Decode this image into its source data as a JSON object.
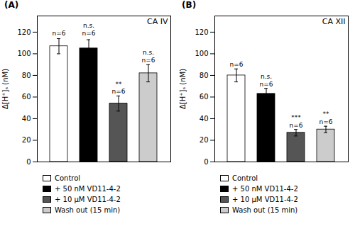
{
  "chart_data": [
    {
      "type": "bar",
      "title": "CA IV",
      "subtitle": "(A)",
      "categories": [
        "Control",
        "+ 50 nM VD11-4-2",
        "+ 10 μM VD11-4-2",
        "Wash out (15 min)"
      ],
      "values": [
        107,
        105,
        54,
        82
      ],
      "errors": [
        7,
        8,
        7,
        8
      ],
      "colors": [
        "#ffffff",
        "#000000",
        "#555555",
        "#cccccc"
      ],
      "ylabel": "Δ[H⁺]ₛ (nM)",
      "ylim": [
        0,
        135
      ],
      "yticks": [
        0,
        20,
        40,
        60,
        80,
        100,
        120
      ],
      "tick_labels": "y",
      "legend": "bottom",
      "annotations": [
        {
          "category": "Control",
          "text": "n=6",
          "y": 117
        },
        {
          "category": "+ 50 nM VD11-4-2",
          "text": "n=6",
          "y": 117
        },
        {
          "category": "+ 50 nM VD11-4-2",
          "text": "n.s.",
          "y": 124
        },
        {
          "category": "+ 10 μM VD11-4-2",
          "text": "n=6",
          "y": 63
        },
        {
          "category": "+ 10 μM VD11-4-2",
          "text": "**",
          "y": 70
        },
        {
          "category": "Wash out (15 min)",
          "text": "n=6",
          "y": 92
        },
        {
          "category": "Wash out (15 min)",
          "text": "n.s.",
          "y": 99
        }
      ]
    },
    {
      "type": "bar",
      "title": "CA XII",
      "subtitle": "(B)",
      "categories": [
        "Control",
        "+ 50 nM VD11-4-2",
        "+ 10 μM VD11-4-2",
        "Wash out (15 min)"
      ],
      "values": [
        80,
        63,
        27,
        30
      ],
      "errors": [
        6,
        5,
        3,
        3
      ],
      "colors": [
        "#ffffff",
        "#000000",
        "#555555",
        "#cccccc"
      ],
      "ylabel": "Δ[H⁺]ₛ (nM)",
      "ylim": [
        0,
        135
      ],
      "yticks": [
        0,
        20,
        40,
        60,
        80,
        100,
        120
      ],
      "tick_labels": "y",
      "legend": "bottom",
      "annotations": [
        {
          "category": "Control",
          "text": "n=6",
          "y": 88
        },
        {
          "category": "+ 50 nM VD11-4-2",
          "text": "n=6",
          "y": 70
        },
        {
          "category": "+ 50 nM VD11-4-2",
          "text": "n.s.",
          "y": 77
        },
        {
          "category": "+ 10 μM VD11-4-2",
          "text": "n=6",
          "y": 32
        },
        {
          "category": "+ 10 μM VD11-4-2",
          "text": "***",
          "y": 39
        },
        {
          "category": "Wash out (15 min)",
          "text": "n=6",
          "y": 35
        },
        {
          "category": "Wash out (15 min)",
          "text": "**",
          "y": 42
        }
      ]
    }
  ]
}
